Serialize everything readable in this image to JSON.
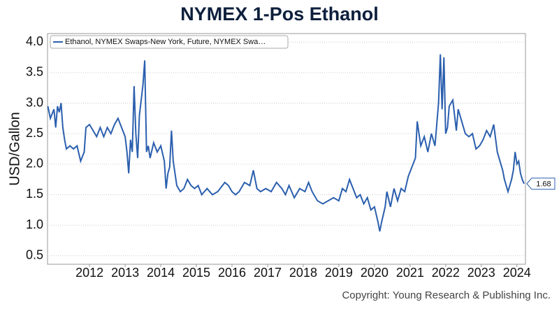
{
  "chart_data": {
    "type": "line",
    "title": "NYMEX 1-Pos Ethanol",
    "ylabel": "USD/Gallon",
    "footer": "Copyright: Young Research & Publishing Inc.",
    "series": [
      {
        "name": "Ethanol, NYMEX Swaps-New York, Future, NYMEX Swa…",
        "color": "#2b5fae",
        "x": [
          2010.83,
          2010.9,
          2011.0,
          2011.05,
          2011.1,
          2011.15,
          2011.2,
          2011.25,
          2011.3,
          2011.35,
          2011.45,
          2011.55,
          2011.65,
          2011.75,
          2011.85,
          2011.9,
          2012.0,
          2012.1,
          2012.2,
          2012.3,
          2012.4,
          2012.5,
          2012.6,
          2012.7,
          2012.8,
          2012.9,
          2013.0,
          2013.05,
          2013.1,
          2013.15,
          2013.2,
          2013.25,
          2013.3,
          2013.35,
          2013.4,
          2013.5,
          2013.55,
          2013.6,
          2013.65,
          2013.7,
          2013.8,
          2013.9,
          2014.0,
          2014.1,
          2014.15,
          2014.2,
          2014.25,
          2014.3,
          2014.35,
          2014.45,
          2014.55,
          2014.65,
          2014.75,
          2014.85,
          2014.95,
          2015.05,
          2015.15,
          2015.3,
          2015.45,
          2015.6,
          2015.8,
          2015.9,
          2016.0,
          2016.1,
          2016.2,
          2016.35,
          2016.5,
          2016.6,
          2016.7,
          2016.8,
          2016.95,
          2017.1,
          2017.25,
          2017.4,
          2017.5,
          2017.6,
          2017.75,
          2017.9,
          2018.05,
          2018.15,
          2018.25,
          2018.4,
          2018.55,
          2018.7,
          2018.85,
          2019.0,
          2019.1,
          2019.2,
          2019.3,
          2019.4,
          2019.5,
          2019.6,
          2019.7,
          2019.8,
          2019.9,
          2020.0,
          2020.1,
          2020.15,
          2020.2,
          2020.3,
          2020.35,
          2020.45,
          2020.55,
          2020.65,
          2020.75,
          2020.85,
          2020.95,
          2021.05,
          2021.15,
          2021.2,
          2021.25,
          2021.3,
          2021.4,
          2021.5,
          2021.6,
          2021.7,
          2021.8,
          2021.85,
          2021.9,
          2021.95,
          2022.0,
          2022.05,
          2022.1,
          2022.2,
          2022.3,
          2022.35,
          2022.45,
          2022.55,
          2022.65,
          2022.75,
          2022.85,
          2022.95,
          2023.05,
          2023.15,
          2023.25,
          2023.35,
          2023.45,
          2023.55,
          2023.6,
          2023.65,
          2023.75,
          2023.85,
          2023.9,
          2023.95,
          2024.0,
          2024.05,
          2024.1,
          2024.15,
          2024.2
        ],
        "values": [
          2.95,
          2.75,
          2.9,
          2.6,
          2.95,
          2.85,
          3.0,
          2.6,
          2.4,
          2.25,
          2.3,
          2.25,
          2.3,
          2.05,
          2.2,
          2.6,
          2.65,
          2.55,
          2.45,
          2.6,
          2.45,
          2.6,
          2.5,
          2.65,
          2.75,
          2.6,
          2.45,
          2.2,
          1.85,
          2.4,
          2.2,
          3.28,
          2.5,
          2.1,
          2.8,
          3.3,
          3.7,
          2.2,
          2.3,
          2.1,
          2.35,
          2.2,
          2.3,
          2.05,
          1.6,
          1.85,
          1.95,
          2.55,
          2.05,
          1.65,
          1.55,
          1.6,
          1.75,
          1.65,
          1.6,
          1.65,
          1.5,
          1.6,
          1.5,
          1.55,
          1.7,
          1.65,
          1.55,
          1.5,
          1.55,
          1.7,
          1.65,
          1.9,
          1.6,
          1.55,
          1.6,
          1.55,
          1.7,
          1.6,
          1.5,
          1.65,
          1.45,
          1.6,
          1.55,
          1.7,
          1.55,
          1.4,
          1.35,
          1.4,
          1.45,
          1.4,
          1.6,
          1.55,
          1.75,
          1.6,
          1.45,
          1.5,
          1.35,
          1.45,
          1.25,
          1.3,
          1.05,
          0.9,
          1.05,
          1.3,
          1.55,
          1.3,
          1.6,
          1.4,
          1.6,
          1.55,
          1.8,
          1.95,
          2.1,
          2.7,
          2.5,
          2.3,
          2.45,
          2.2,
          2.5,
          2.3,
          3.0,
          3.8,
          2.9,
          3.75,
          2.5,
          2.6,
          2.95,
          3.05,
          2.55,
          2.9,
          2.7,
          2.5,
          2.45,
          2.5,
          2.25,
          2.3,
          2.4,
          2.55,
          2.45,
          2.65,
          2.2,
          2.0,
          1.9,
          1.75,
          1.55,
          1.75,
          1.9,
          2.2,
          2.0,
          2.05,
          1.85,
          1.75,
          1.68
        ]
      }
    ],
    "xlim": [
      2010.82,
      2024.24
    ],
    "xticks": [
      2012,
      2013,
      2014,
      2015,
      2016,
      2017,
      2018,
      2019,
      2020,
      2021,
      2022,
      2023,
      2024
    ],
    "ylim": [
      0.36,
      4.14
    ],
    "yticks": [
      {
        "value": 0.5,
        "label": "0.5"
      },
      {
        "value": 1,
        "label": "1.0"
      },
      1.5,
      {
        "value": 2,
        "label": "2.0"
      },
      2.5,
      {
        "value": 3,
        "label": "3.0"
      },
      3.5,
      {
        "value": 4,
        "label": "4.0"
      }
    ],
    "grid": true,
    "legend": "upper left"
  }
}
